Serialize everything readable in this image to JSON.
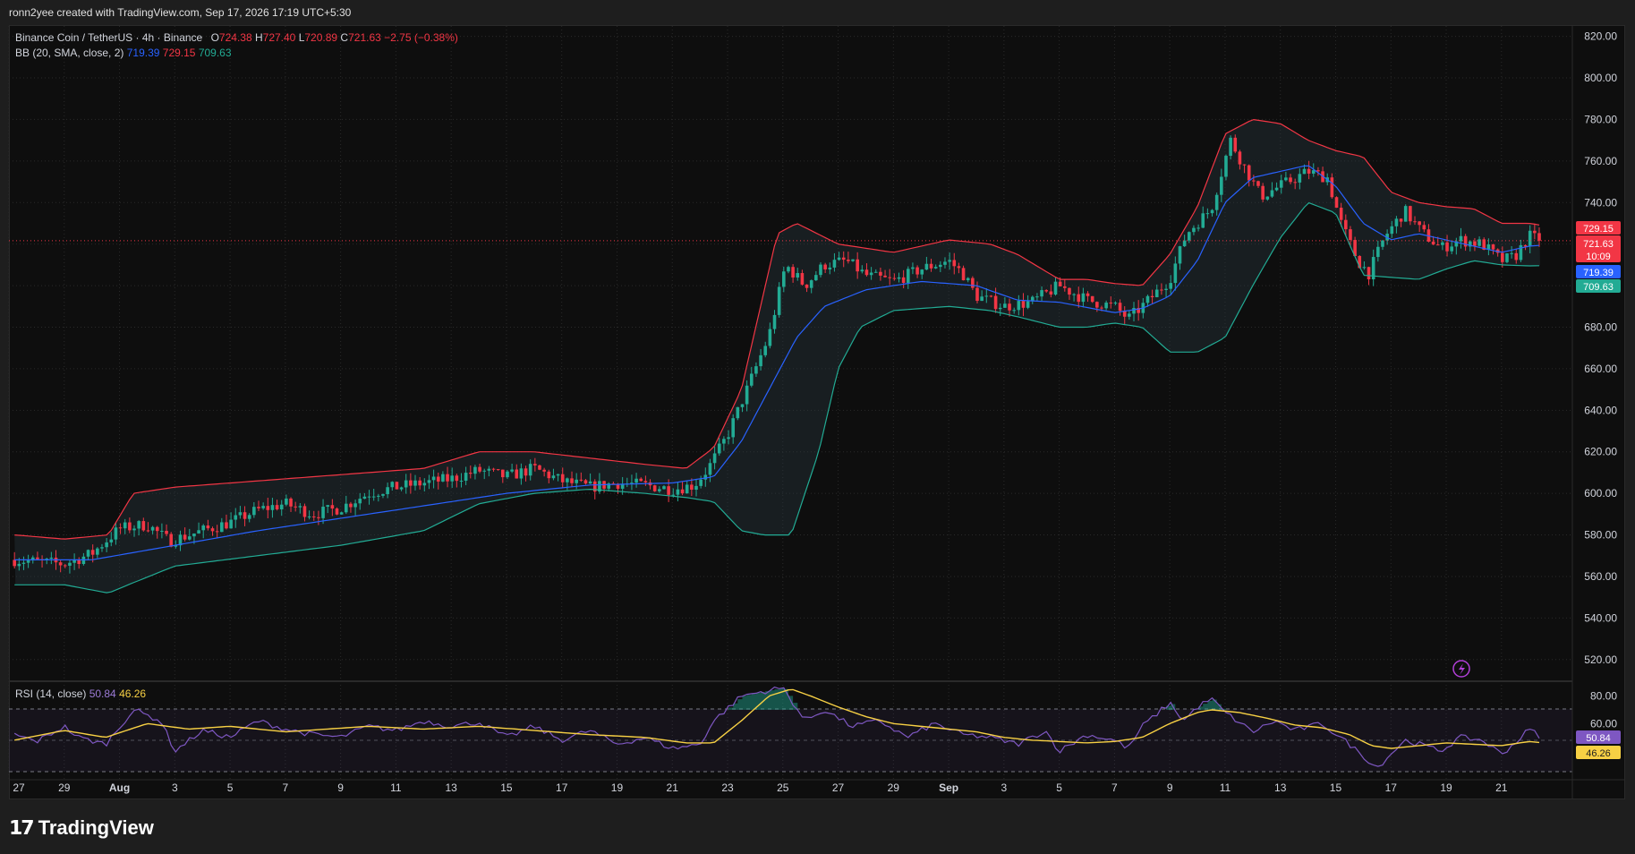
{
  "header": {
    "attribution": "ronn2yee created with TradingView.com, Sep 17, 2026 17:19 UTC+5:30"
  },
  "legend": {
    "symbol": "Binance Coin / TetherUS · 4h · Binance",
    "o_label": "O",
    "o": "724.38",
    "h_label": "H",
    "h": "727.40",
    "l_label": "L",
    "l": "720.89",
    "c_label": "C",
    "c": "721.63",
    "change": "−2.75 (−0.38%)",
    "bb_title": "BB (20, SMA, close, 2)",
    "bb_basis": "719.39",
    "bb_upper": "729.15",
    "bb_lower": "709.63"
  },
  "rsi_legend": {
    "title": "RSI (14, close)",
    "rsi": "50.84",
    "ma": "46.26"
  },
  "price_axis": {
    "ticks": [
      "820.00",
      "800.00",
      "780.00",
      "760.00",
      "740.00",
      "720.00",
      "700.00",
      "680.00",
      "660.00",
      "640.00",
      "620.00",
      "600.00",
      "580.00",
      "560.00",
      "540.00",
      "520.00"
    ]
  },
  "rsi_axis": {
    "ticks": [
      "80.00",
      "60.00"
    ]
  },
  "badges": {
    "upper": "729.15",
    "price": "721.63",
    "countdown": "10:09",
    "basis": "719.39",
    "lower": "709.63",
    "rsi": "50.84",
    "rsi_ma": "46.26"
  },
  "time_axis": {
    "ticks": [
      "27",
      "29",
      "Aug",
      "3",
      "5",
      "7",
      "9",
      "11",
      "13",
      "15",
      "17",
      "19",
      "21",
      "23",
      "25",
      "27",
      "29",
      "Sep",
      "3",
      "5",
      "7",
      "9",
      "11",
      "13",
      "15",
      "17",
      "19",
      "21"
    ]
  },
  "footer": {
    "brand": "TradingView"
  },
  "colors": {
    "up": "#22ab94",
    "down": "#f23645",
    "basis": "#2962ff",
    "upper_band": "#f23645",
    "lower_band": "#22ab94",
    "rsi": "#7e57c2",
    "rsi_ma": "#f7d044"
  },
  "chart_data": {
    "type": "candlestick",
    "interval": "4h",
    "ylim": [
      510,
      825
    ],
    "rsi_ylim": [
      20,
      90
    ],
    "x_domain": [
      27,
      83.5
    ],
    "price_anchors": [
      [
        27.2,
        568
      ],
      [
        29,
        566
      ],
      [
        30,
        571
      ],
      [
        31,
        583
      ],
      [
        32,
        585
      ],
      [
        32.8,
        577
      ],
      [
        34,
        582
      ],
      [
        35,
        586
      ],
      [
        36,
        592
      ],
      [
        37,
        595
      ],
      [
        38,
        590
      ],
      [
        39,
        593
      ],
      [
        40,
        600
      ],
      [
        41,
        603
      ],
      [
        42,
        605
      ],
      [
        43,
        607
      ],
      [
        44,
        611
      ],
      [
        45,
        608
      ],
      [
        46,
        612
      ],
      [
        47,
        606
      ],
      [
        48,
        603
      ],
      [
        49,
        605
      ],
      [
        50,
        604
      ],
      [
        51,
        602
      ],
      [
        51.8,
        604
      ],
      [
        52.3,
        612
      ],
      [
        53,
        628
      ],
      [
        53.7,
        650
      ],
      [
        54.5,
        676
      ],
      [
        55.1,
        710
      ],
      [
        55.8,
        700
      ],
      [
        56.5,
        710
      ],
      [
        57.3,
        712
      ],
      [
        58,
        705
      ],
      [
        59,
        702
      ],
      [
        60,
        708
      ],
      [
        61,
        712
      ],
      [
        61.5,
        706
      ],
      [
        62,
        695
      ],
      [
        63,
        690
      ],
      [
        64,
        692
      ],
      [
        65,
        700
      ],
      [
        66,
        693
      ],
      [
        67,
        690
      ],
      [
        67.5,
        684
      ],
      [
        68,
        690
      ],
      [
        69,
        703
      ],
      [
        69.6,
        725
      ],
      [
        70.5,
        737
      ],
      [
        71.2,
        770
      ],
      [
        71.7,
        757
      ],
      [
        72.3,
        743
      ],
      [
        73,
        748
      ],
      [
        74,
        755
      ],
      [
        74.7,
        752
      ],
      [
        75.2,
        730
      ],
      [
        75.8,
        712
      ],
      [
        76.2,
        706
      ],
      [
        76.8,
        724
      ],
      [
        77.5,
        736
      ],
      [
        78.1,
        726
      ],
      [
        78.8,
        718
      ],
      [
        79.5,
        722
      ],
      [
        80.3,
        720
      ],
      [
        81,
        712
      ],
      [
        81.5,
        714
      ],
      [
        82,
        724
      ],
      [
        82.4,
        721.63
      ]
    ],
    "bb_basis_anchors": [
      [
        27.2,
        568
      ],
      [
        30,
        568
      ],
      [
        33,
        575
      ],
      [
        36,
        582
      ],
      [
        39,
        588
      ],
      [
        42,
        594
      ],
      [
        45,
        600
      ],
      [
        48,
        604
      ],
      [
        51,
        605
      ],
      [
        52.5,
        608
      ],
      [
        53.5,
        625
      ],
      [
        54.5,
        650
      ],
      [
        55.5,
        675
      ],
      [
        56.5,
        690
      ],
      [
        58,
        698
      ],
      [
        60,
        702
      ],
      [
        62,
        700
      ],
      [
        63.5,
        693
      ],
      [
        65,
        692
      ],
      [
        67,
        687
      ],
      [
        68,
        689
      ],
      [
        69,
        695
      ],
      [
        70,
        712
      ],
      [
        71,
        740
      ],
      [
        72,
        752
      ],
      [
        73,
        755
      ],
      [
        74,
        758
      ],
      [
        75,
        748
      ],
      [
        76,
        730
      ],
      [
        77,
        722
      ],
      [
        78,
        725
      ],
      [
        79,
        722
      ],
      [
        80,
        719
      ],
      [
        81,
        716
      ],
      [
        82,
        719
      ],
      [
        82.4,
        719.39
      ]
    ],
    "bb_upper_anchors": [
      [
        27.2,
        580
      ],
      [
        29,
        578
      ],
      [
        30.6,
        580
      ],
      [
        31.5,
        600
      ],
      [
        33,
        603
      ],
      [
        36,
        606
      ],
      [
        39,
        609
      ],
      [
        42,
        612
      ],
      [
        44,
        620
      ],
      [
        46,
        620
      ],
      [
        48,
        617
      ],
      [
        50,
        614
      ],
      [
        51.5,
        612
      ],
      [
        52.5,
        622
      ],
      [
        53.5,
        650
      ],
      [
        54.8,
        725
      ],
      [
        55.5,
        730
      ],
      [
        57,
        720
      ],
      [
        59,
        716
      ],
      [
        61,
        722
      ],
      [
        62.5,
        720
      ],
      [
        63.5,
        715
      ],
      [
        65,
        703
      ],
      [
        66,
        703
      ],
      [
        67,
        701
      ],
      [
        68,
        700
      ],
      [
        69,
        715
      ],
      [
        70,
        738
      ],
      [
        71,
        773
      ],
      [
        72,
        780
      ],
      [
        73,
        778
      ],
      [
        74,
        770
      ],
      [
        75,
        765
      ],
      [
        76,
        762
      ],
      [
        77,
        745
      ],
      [
        78,
        740
      ],
      [
        79,
        738
      ],
      [
        80,
        737
      ],
      [
        81,
        730
      ],
      [
        82,
        730
      ],
      [
        82.4,
        729.15
      ]
    ],
    "bb_lower_anchors": [
      [
        27.2,
        556
      ],
      [
        29,
        556
      ],
      [
        30.6,
        552
      ],
      [
        31.5,
        557
      ],
      [
        33,
        565
      ],
      [
        36,
        570
      ],
      [
        39,
        575
      ],
      [
        42,
        582
      ],
      [
        44,
        595
      ],
      [
        46,
        600
      ],
      [
        48,
        602
      ],
      [
        50,
        600
      ],
      [
        51.5,
        598
      ],
      [
        52.5,
        596
      ],
      [
        53.5,
        582
      ],
      [
        54.3,
        580
      ],
      [
        55.3,
        580
      ],
      [
        56.3,
        620
      ],
      [
        57,
        660
      ],
      [
        57.8,
        680
      ],
      [
        59,
        688
      ],
      [
        61,
        690
      ],
      [
        62.5,
        688
      ],
      [
        63.5,
        685
      ],
      [
        65,
        680
      ],
      [
        66,
        680
      ],
      [
        67,
        682
      ],
      [
        68,
        680
      ],
      [
        69,
        668
      ],
      [
        70,
        668
      ],
      [
        71,
        675
      ],
      [
        72,
        700
      ],
      [
        73,
        723
      ],
      [
        74,
        740
      ],
      [
        75,
        735
      ],
      [
        76,
        705
      ],
      [
        77,
        704
      ],
      [
        78,
        703
      ],
      [
        79,
        708
      ],
      [
        80,
        712
      ],
      [
        81,
        710
      ],
      [
        82,
        709.5
      ],
      [
        82.4,
        709.63
      ]
    ],
    "rsi_anchors": [
      [
        27.2,
        52
      ],
      [
        28,
        47
      ],
      [
        29,
        58
      ],
      [
        29.5,
        50
      ],
      [
        30.5,
        45
      ],
      [
        31.5,
        70
      ],
      [
        32.5,
        62
      ],
      [
        33,
        40
      ],
      [
        34,
        55
      ],
      [
        35,
        50
      ],
      [
        36,
        62
      ],
      [
        37,
        56
      ],
      [
        38,
        52
      ],
      [
        39,
        50
      ],
      [
        40,
        58
      ],
      [
        41,
        55
      ],
      [
        42,
        62
      ],
      [
        43,
        58
      ],
      [
        44,
        61
      ],
      [
        45,
        50
      ],
      [
        46,
        58
      ],
      [
        47,
        48
      ],
      [
        48,
        55
      ],
      [
        49,
        45
      ],
      [
        50,
        50
      ],
      [
        51,
        42
      ],
      [
        52,
        45
      ],
      [
        52.5,
        62
      ],
      [
        53.5,
        80
      ],
      [
        54,
        82
      ],
      [
        55,
        86
      ],
      [
        55.8,
        62
      ],
      [
        56.5,
        70
      ],
      [
        57.5,
        58
      ],
      [
        58.5,
        62
      ],
      [
        59.5,
        50
      ],
      [
        60.5,
        60
      ],
      [
        61.5,
        52
      ],
      [
        62.5,
        50
      ],
      [
        63.5,
        45
      ],
      [
        64.5,
        55
      ],
      [
        65,
        40
      ],
      [
        66,
        52
      ],
      [
        67,
        48
      ],
      [
        67.5,
        42
      ],
      [
        68,
        58
      ],
      [
        69,
        75
      ],
      [
        69.5,
        62
      ],
      [
        70,
        72
      ],
      [
        70.5,
        78
      ],
      [
        71,
        68
      ],
      [
        72,
        54
      ],
      [
        72.8,
        62
      ],
      [
        73.5,
        55
      ],
      [
        74.5,
        60
      ],
      [
        75.5,
        45
      ],
      [
        76.5,
        28
      ],
      [
        77.5,
        48
      ],
      [
        78.2,
        44
      ],
      [
        78.8,
        40
      ],
      [
        79.5,
        50
      ],
      [
        80.3,
        48
      ],
      [
        81,
        38
      ],
      [
        81.5,
        46
      ],
      [
        82,
        56
      ],
      [
        82.4,
        50.84
      ]
    ],
    "rsi_ma_anchors": [
      [
        27.2,
        48
      ],
      [
        29,
        55
      ],
      [
        30.5,
        50
      ],
      [
        32,
        60
      ],
      [
        33.5,
        56
      ],
      [
        35,
        58
      ],
      [
        37,
        54
      ],
      [
        38.5,
        56
      ],
      [
        40,
        58
      ],
      [
        42,
        56
      ],
      [
        44,
        58
      ],
      [
        46,
        55
      ],
      [
        48,
        52
      ],
      [
        50,
        50
      ],
      [
        51.5,
        46
      ],
      [
        52.5,
        46
      ],
      [
        53.5,
        62
      ],
      [
        54.5,
        80
      ],
      [
        55.3,
        85
      ],
      [
        56,
        80
      ],
      [
        57,
        72
      ],
      [
        58,
        65
      ],
      [
        59,
        60
      ],
      [
        60,
        58
      ],
      [
        61,
        56
      ],
      [
        62,
        54
      ],
      [
        63,
        50
      ],
      [
        64,
        48
      ],
      [
        65,
        47
      ],
      [
        66,
        46
      ],
      [
        67,
        47
      ],
      [
        68,
        50
      ],
      [
        69,
        60
      ],
      [
        70,
        68
      ],
      [
        70.5,
        70
      ],
      [
        71.5,
        68
      ],
      [
        72.5,
        64
      ],
      [
        73.5,
        59
      ],
      [
        74.5,
        57
      ],
      [
        75.5,
        52
      ],
      [
        76.3,
        44
      ],
      [
        77,
        42
      ],
      [
        78,
        44
      ],
      [
        79,
        46
      ],
      [
        80,
        45
      ],
      [
        81,
        44
      ],
      [
        82,
        47
      ],
      [
        82.4,
        46.26
      ]
    ]
  }
}
